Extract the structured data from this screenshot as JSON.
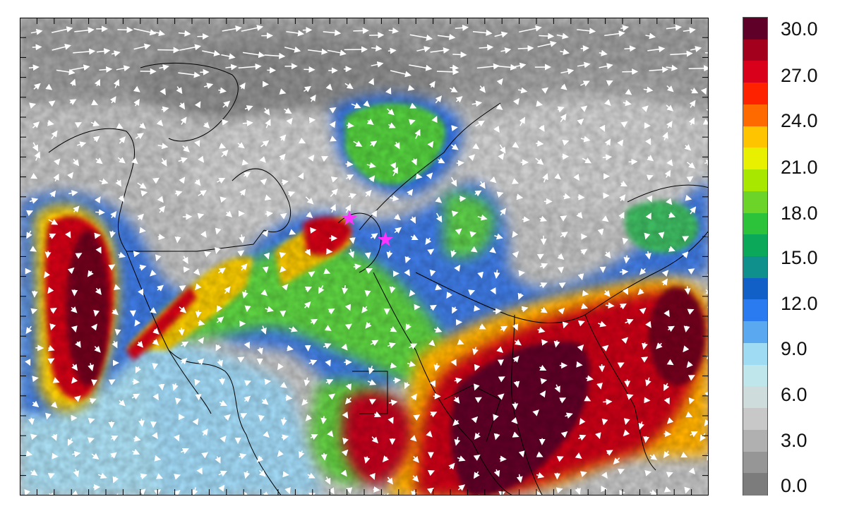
{
  "colorbar": {
    "labels": [
      "30.0",
      "27.0",
      "24.0",
      "21.0",
      "18.0",
      "15.0",
      "12.0",
      "9.0",
      "6.0",
      "3.0",
      "0.0"
    ],
    "colors": [
      "#5e0028",
      "#a3001e",
      "#d8001a",
      "#ff2200",
      "#ff6a00",
      "#ffc400",
      "#e8f000",
      "#a8e800",
      "#6cd428",
      "#2cc23a",
      "#0ca85a",
      "#10908c",
      "#1060c8",
      "#2a7af0",
      "#5aa8f0",
      "#9fdcf4",
      "#bfe6ea",
      "#cfdcdc",
      "#c8c8c8",
      "#b0b0b0",
      "#969696",
      "#7c7c7c"
    ]
  },
  "map": {
    "vector_color": "#ffffff",
    "marker_color": "#ff33ff",
    "markers": [
      "star",
      "star"
    ]
  }
}
